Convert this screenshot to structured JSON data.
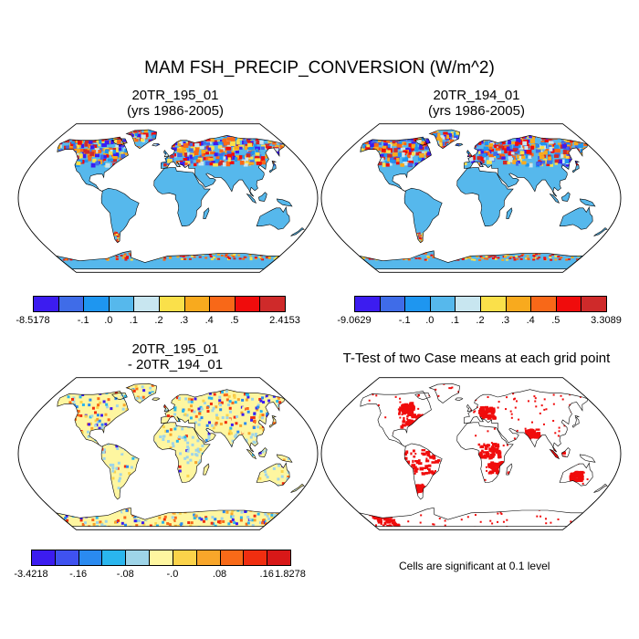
{
  "figure": {
    "main_title": "MAM FSH_PRECIP_CONVERSION (W/m^2)",
    "note": "Cells are significant at 0.1 level"
  },
  "panels": [
    {
      "id": "p1",
      "title_line1": "20TR_195_01",
      "title_line2": "(yrs 1986-2005)",
      "kind": "field"
    },
    {
      "id": "p2",
      "title_line1": "20TR_194_01",
      "title_line2": "(yrs 1986-2005)",
      "kind": "field"
    },
    {
      "id": "p3",
      "title_line1": "20TR_195_01",
      "title_line2": "- 20TR_194_01",
      "kind": "difference"
    },
    {
      "id": "p4",
      "title_line1": "T-Test of two Case means at each grid point",
      "title_line2": "",
      "kind": "ttest"
    }
  ],
  "colorbars": [
    {
      "id": "cb1",
      "colors": [
        "#3c1cf0",
        "#3f6ce8",
        "#1e96f0",
        "#56b8ec",
        "#c8e6f0",
        "#fae04a",
        "#f8aa1e",
        "#f86818",
        "#f00c0c",
        "#cf2a2a"
      ],
      "labels": [
        "-8.5178",
        "-.1",
        ".0",
        ".1",
        ".2",
        ".3",
        ".4",
        ".5",
        "2.4153"
      ],
      "label_edges": [
        0,
        2,
        3,
        4,
        5,
        6,
        7,
        8,
        10
      ]
    },
    {
      "id": "cb2",
      "colors": [
        "#3c1cf0",
        "#3f6ce8",
        "#1e96f0",
        "#56b8ec",
        "#c8e6f0",
        "#fae04a",
        "#f8aa1e",
        "#f86818",
        "#f00c0c",
        "#cf2a2a"
      ],
      "labels": [
        "-9.0629",
        "-.1",
        ".0",
        ".1",
        ".2",
        ".3",
        ".4",
        ".5",
        "3.3089"
      ],
      "label_edges": [
        0,
        2,
        3,
        4,
        5,
        6,
        7,
        8,
        10
      ]
    },
    {
      "id": "cb3",
      "colors": [
        "#3c1cf0",
        "#3f52f0",
        "#2a8af0",
        "#2ab6ee",
        "#9ed4e8",
        "#fef6a0",
        "#fbd34a",
        "#f8a62a",
        "#f86a18",
        "#f02e10",
        "#d81818"
      ],
      "labels": [
        "-3.4218",
        "-.16",
        "-.08",
        "-.0",
        ".08",
        ".16",
        "1.8278"
      ],
      "label_edges": [
        0,
        2,
        4,
        6,
        8,
        10,
        11
      ]
    }
  ],
  "map_legend": {
    "ocean_color": "#ffffff",
    "base_land_fields": "#56b8ec",
    "base_land_difference": "#fef6a0",
    "significant_color": "#f00c0c"
  }
}
